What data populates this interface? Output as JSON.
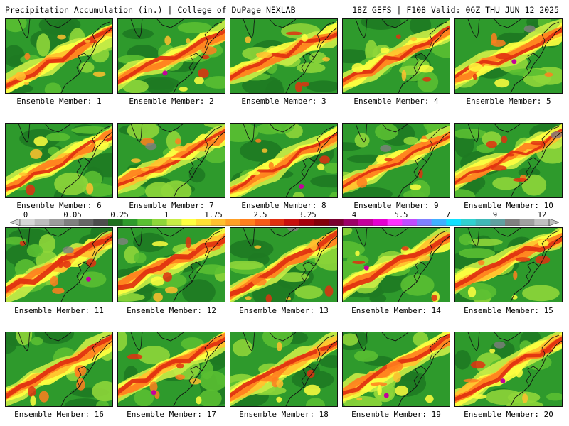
{
  "header": {
    "title": "Precipitation Accumulation (in.) | College of DuPage NEXLAB",
    "run_info": "18Z GEFS | F108 Valid: 06Z THU JUN 12 2025"
  },
  "panels": [
    {
      "label": "Ensemble Member: 1"
    },
    {
      "label": "Ensemble Member: 2"
    },
    {
      "label": "Ensemble Member: 3"
    },
    {
      "label": "Ensemble Member: 4"
    },
    {
      "label": "Ensemble Member: 5"
    },
    {
      "label": "Ensemble Member: 6"
    },
    {
      "label": "Ensemble Member: 7"
    },
    {
      "label": "Ensemble Member: 8"
    },
    {
      "label": "Ensemble Member: 9"
    },
    {
      "label": "Ensemble Member: 10"
    },
    {
      "label": "Ensemble Member: 11"
    },
    {
      "label": "Ensemble Member: 12"
    },
    {
      "label": "Ensemble Member: 13"
    },
    {
      "label": "Ensemble Member: 14"
    },
    {
      "label": "Ensemble Member: 15"
    },
    {
      "label": "Ensemble Member: 16"
    },
    {
      "label": "Ensemble Member: 17"
    },
    {
      "label": "Ensemble Member: 18"
    },
    {
      "label": "Ensemble Member: 19"
    },
    {
      "label": "Ensemble Member: 20"
    }
  ],
  "colorbar": {
    "tick_labels": [
      "0",
      "0.05",
      "0.25",
      "1",
      "1.75",
      "2.5",
      "3.25",
      "4",
      "5.5",
      "7",
      "9",
      "12"
    ],
    "colors": [
      "#d6d6d6",
      "#bdbdbd",
      "#9c9c9c",
      "#808080",
      "#666666",
      "#4d4d4d",
      "#1e6e1e",
      "#2e9a2c",
      "#5abf32",
      "#8ed63a",
      "#c8ec46",
      "#ffff40",
      "#ffe035",
      "#ffc02e",
      "#ffa026",
      "#ff7f1e",
      "#f45a18",
      "#e03010",
      "#c8100e",
      "#a5000c",
      "#84000a",
      "#7a0030",
      "#9c0068",
      "#c4009c",
      "#e400d0",
      "#ff32ff",
      "#c04cff",
      "#8080ff",
      "#40b0ff",
      "#10e0ff",
      "#30d0d0",
      "#40b8b8",
      "#60a0a0",
      "#808080",
      "#a0a0a0",
      "#c0c0c0"
    ]
  }
}
